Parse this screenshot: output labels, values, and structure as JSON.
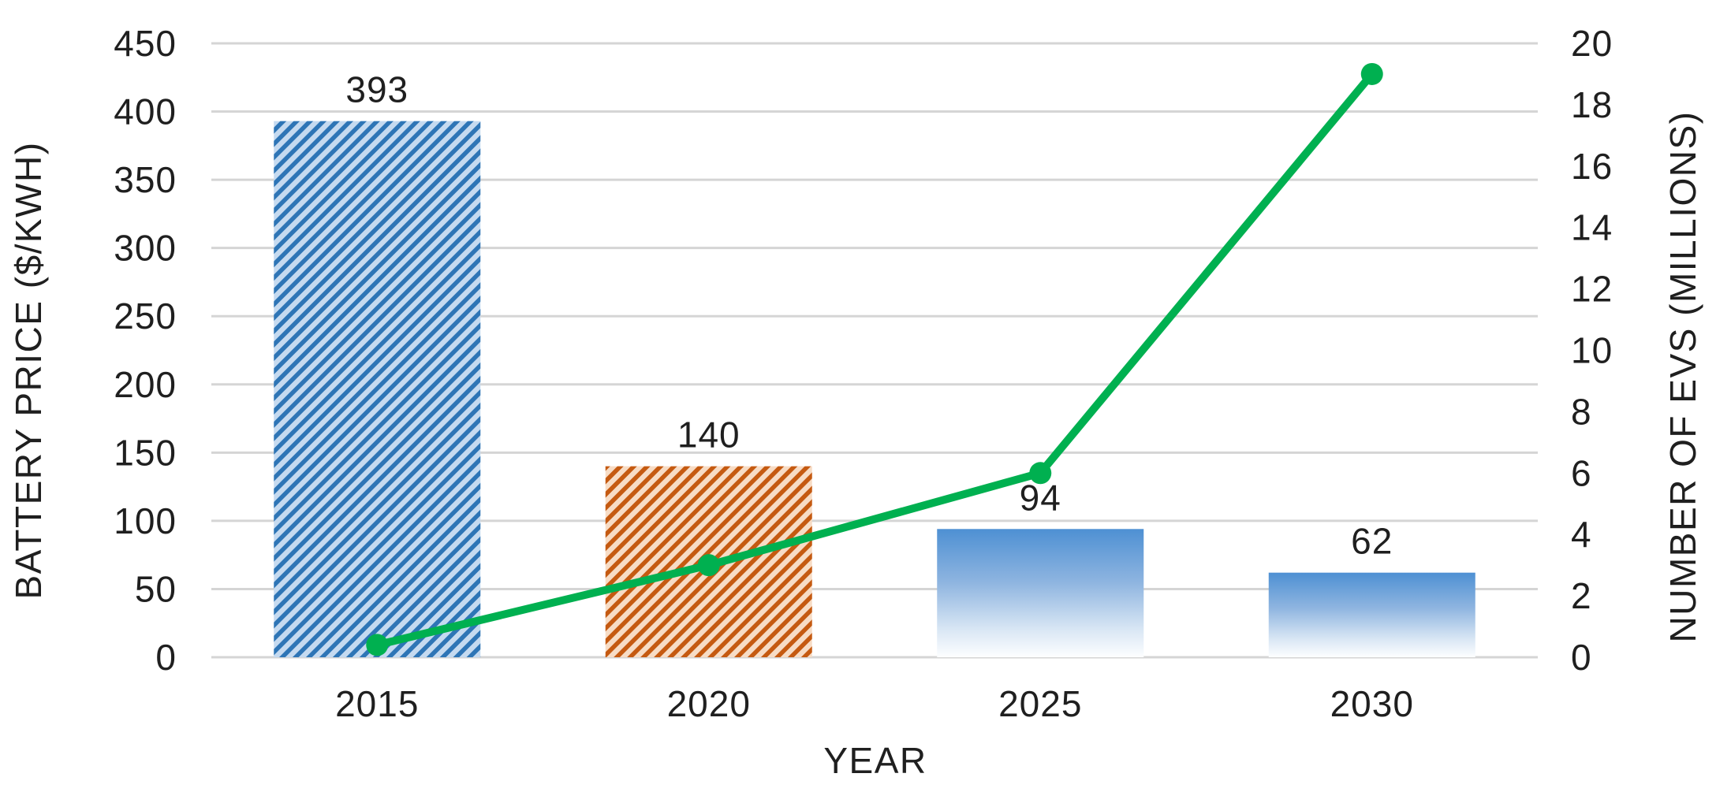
{
  "chart_data": {
    "type": "bar",
    "subtype": "combo-dual-axis",
    "categories": [
      "2015",
      "2020",
      "2025",
      "2030"
    ],
    "series": [
      {
        "name": "BATTERY PRICE ($/KWH)",
        "type": "bar",
        "axis": "left",
        "values": [
          393,
          140,
          94,
          62
        ],
        "data_labels": [
          "393",
          "140",
          "94",
          "62"
        ],
        "bar_styles": [
          "hatch-blue",
          "hatch-orange",
          "gradient-blue",
          "gradient-blue"
        ]
      },
      {
        "name": "NUMBER OF EVS (MILLIONS)",
        "type": "line",
        "axis": "right",
        "values": [
          0.4,
          3,
          6,
          19
        ],
        "marker": "circle"
      }
    ],
    "title": "",
    "xlabel": "YEAR",
    "ylabel_left": "BATTERY PRICE ($/KWH)",
    "ylabel_right": "NUMBER OF EVS (MILLIONS)",
    "ylim_left": [
      0,
      450
    ],
    "ylim_right": [
      0,
      20
    ],
    "yticks_left": [
      0,
      50,
      100,
      150,
      200,
      250,
      300,
      350,
      400,
      450
    ],
    "yticks_right": [
      0,
      2,
      4,
      6,
      8,
      10,
      12,
      14,
      16,
      18,
      20
    ],
    "grid": true,
    "legend": "none",
    "colors": {
      "hatch_blue_stripe": "#2E75B6",
      "hatch_blue_bg": "#C5DAF0",
      "hatch_orange_stripe": "#C55A11",
      "hatch_orange_bg": "#F7DCC5",
      "gradient_top": "#4E90D3",
      "gradient_mid": "#8FB5E0",
      "gradient_low": "#D8E6F4",
      "gradient_bottom": "#FDFEFF",
      "line": "#00B050",
      "grid": "#D5D5D5",
      "text": "#1F1F1F"
    }
  }
}
